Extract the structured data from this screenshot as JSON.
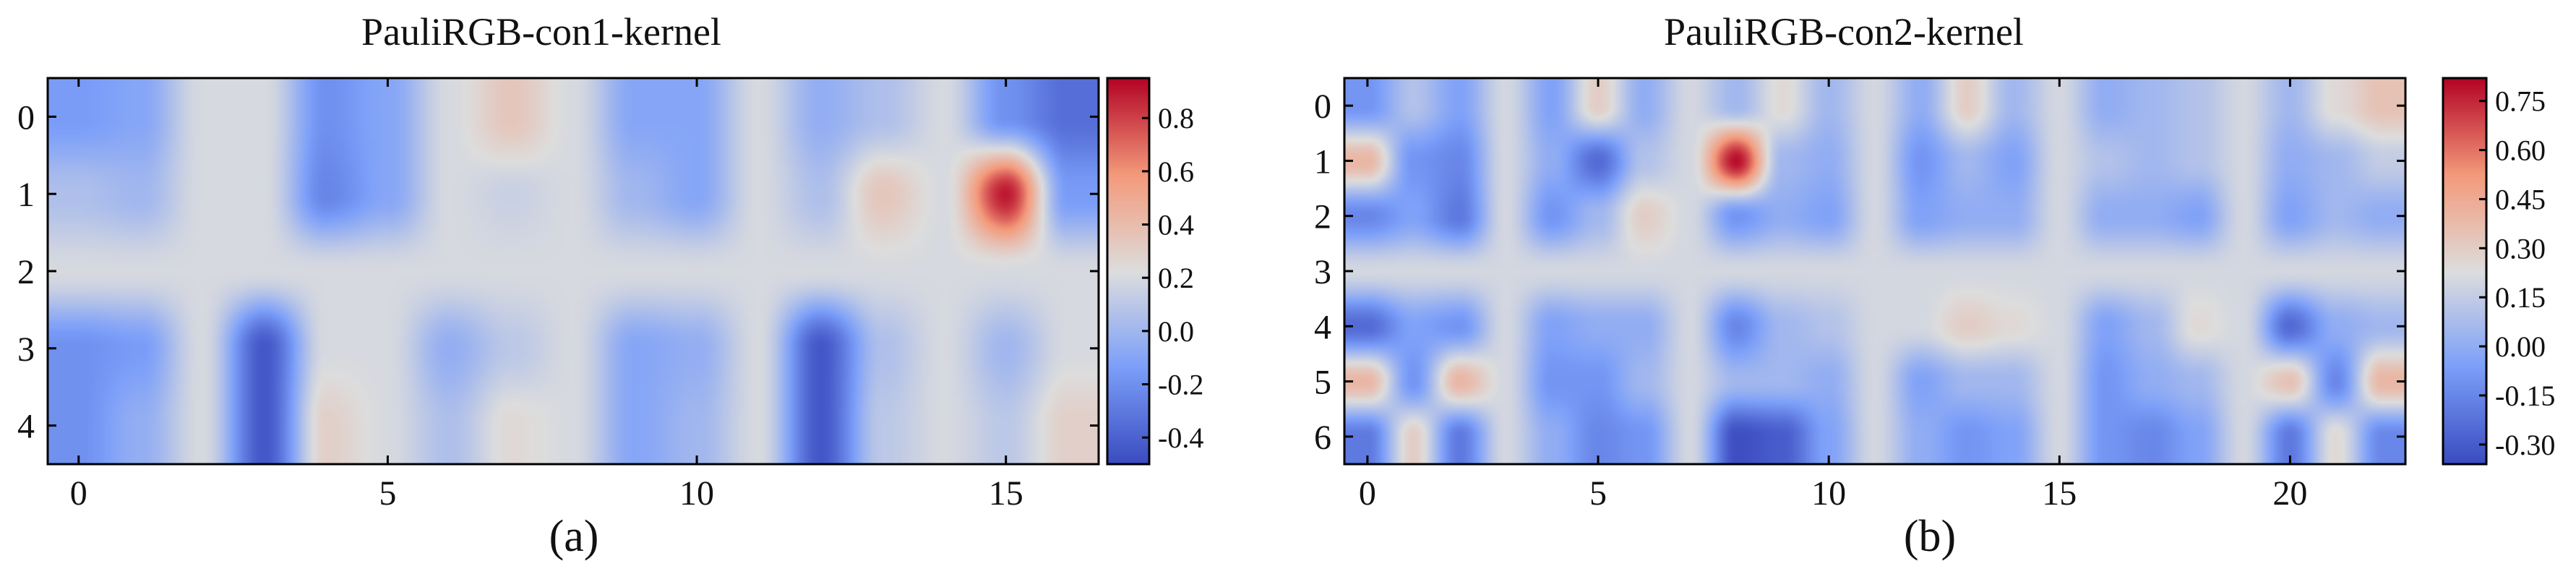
{
  "chart_data": [
    {
      "type": "heatmap",
      "title": "PauliRGB-con1-kernel",
      "caption": "(a)",
      "xlabel": "",
      "ylabel": "",
      "xlim": [
        -0.5,
        16.5
      ],
      "ylim": [
        4.5,
        -0.5
      ],
      "x_ticks": [
        0,
        5,
        10,
        15
      ],
      "x_tick_labels": [
        "0",
        "5",
        "10",
        "15"
      ],
      "y_ticks": [
        0,
        1,
        2,
        3,
        4
      ],
      "y_tick_labels": [
        "0",
        "1",
        "2",
        "3",
        "4"
      ],
      "colormap": "coolwarm",
      "interpolation": "bicubic",
      "value_range": [
        -0.5,
        0.95
      ],
      "colorbar_ticks": [
        0.8,
        0.6,
        0.4,
        0.2,
        0.0,
        -0.2,
        -0.4
      ],
      "colorbar_tick_labels": [
        "0.8",
        "0.6",
        "0.4",
        "0.2",
        "0.0",
        "-0.2",
        "-0.4"
      ],
      "values": [
        [
          -0.15,
          -0.1,
          0.2,
          0.2,
          -0.2,
          -0.1,
          0.2,
          0.35,
          0.2,
          -0.1,
          -0.1,
          0.2,
          -0.05,
          0.05,
          0.2,
          -0.2,
          -0.35
        ],
        [
          0.05,
          0.0,
          0.2,
          0.2,
          -0.25,
          -0.1,
          0.2,
          0.15,
          0.2,
          0.0,
          -0.1,
          0.2,
          0.05,
          0.35,
          0.2,
          0.9,
          -0.15
        ],
        [
          0.2,
          0.2,
          0.2,
          0.2,
          0.2,
          0.2,
          0.2,
          0.2,
          0.2,
          0.2,
          0.2,
          0.2,
          0.2,
          0.2,
          0.2,
          0.2,
          0.2
        ],
        [
          -0.2,
          -0.15,
          0.2,
          -0.45,
          0.2,
          0.2,
          -0.05,
          0.1,
          0.2,
          -0.1,
          -0.05,
          0.2,
          -0.45,
          0.05,
          0.2,
          0.0,
          0.2
        ],
        [
          -0.2,
          -0.05,
          0.2,
          -0.45,
          0.3,
          0.2,
          0.05,
          0.25,
          0.2,
          -0.1,
          0.0,
          0.2,
          -0.45,
          0.1,
          0.2,
          0.1,
          0.3
        ]
      ]
    },
    {
      "type": "heatmap",
      "title": "PauliRGB-con2-kernel",
      "caption": "(b)",
      "xlabel": "",
      "ylabel": "",
      "xlim": [
        -0.5,
        22.5
      ],
      "ylim": [
        6.5,
        -0.5
      ],
      "x_ticks": [
        0,
        5,
        10,
        15,
        20
      ],
      "x_tick_labels": [
        "0",
        "5",
        "10",
        "15",
        "20"
      ],
      "y_ticks": [
        0,
        1,
        2,
        3,
        4,
        5,
        6
      ],
      "y_tick_labels": [
        "0",
        "1",
        "2",
        "3",
        "4",
        "5",
        "6"
      ],
      "colormap": "coolwarm",
      "interpolation": "bicubic",
      "value_range": [
        -0.36,
        0.82
      ],
      "colorbar_ticks": [
        0.75,
        0.6,
        0.45,
        0.3,
        0.15,
        0.0,
        -0.15,
        -0.3
      ],
      "colorbar_tick_labels": [
        "0.75",
        "0.60",
        "0.45",
        "0.30",
        "0.15",
        "0.00",
        "-0.15",
        "-0.30"
      ],
      "values": [
        [
          -0.1,
          0.1,
          -0.05,
          0.2,
          -0.05,
          0.3,
          0.0,
          0.2,
          0.05,
          0.25,
          0.05,
          0.2,
          0.0,
          0.3,
          0.05,
          0.2,
          0.0,
          0.05,
          0.1,
          0.2,
          0.05,
          0.25,
          0.35
        ],
        [
          0.4,
          -0.1,
          -0.15,
          0.2,
          0.0,
          -0.25,
          0.1,
          0.2,
          0.8,
          0.05,
          0.0,
          0.2,
          -0.1,
          0.05,
          -0.05,
          0.2,
          0.1,
          0.05,
          0.1,
          0.2,
          0.0,
          0.05,
          0.15
        ],
        [
          -0.15,
          -0.05,
          -0.2,
          0.2,
          -0.1,
          0.05,
          0.3,
          0.2,
          -0.1,
          0.0,
          -0.05,
          0.2,
          -0.05,
          0.0,
          0.0,
          0.2,
          0.0,
          0.0,
          -0.05,
          0.2,
          -0.05,
          0.05,
          0.0
        ],
        [
          0.2,
          0.2,
          0.2,
          0.2,
          0.2,
          0.2,
          0.2,
          0.2,
          0.2,
          0.2,
          0.2,
          0.2,
          0.2,
          0.2,
          0.2,
          0.2,
          0.2,
          0.2,
          0.2,
          0.2,
          0.2,
          0.2,
          0.2
        ],
        [
          -0.25,
          -0.05,
          -0.1,
          0.2,
          -0.05,
          0.0,
          0.0,
          0.2,
          -0.15,
          0.05,
          0.1,
          0.2,
          0.2,
          0.3,
          0.25,
          0.2,
          -0.05,
          0.05,
          0.25,
          0.2,
          -0.25,
          0.0,
          0.05
        ],
        [
          0.4,
          -0.1,
          0.4,
          0.2,
          -0.1,
          -0.1,
          0.05,
          0.2,
          0.05,
          0.05,
          0.0,
          0.2,
          -0.05,
          0.05,
          0.05,
          0.2,
          -0.1,
          0.0,
          0.05,
          0.2,
          0.35,
          -0.15,
          0.4
        ],
        [
          -0.2,
          0.3,
          -0.2,
          0.2,
          0.0,
          -0.15,
          -0.1,
          0.2,
          -0.35,
          -0.3,
          -0.05,
          0.2,
          0.0,
          -0.1,
          -0.05,
          0.2,
          -0.1,
          -0.15,
          -0.05,
          0.2,
          -0.2,
          0.25,
          -0.15
        ]
      ]
    }
  ]
}
